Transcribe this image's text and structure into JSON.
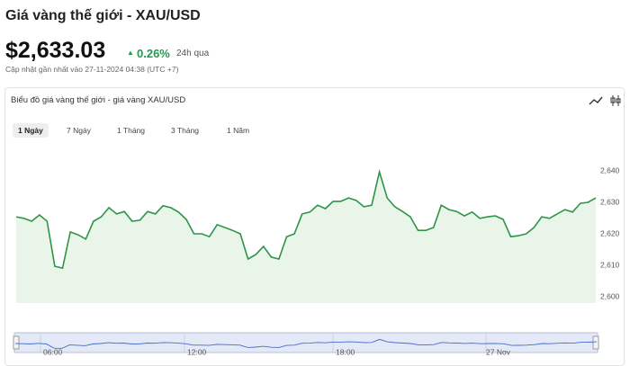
{
  "header": {
    "title": "Giá vàng thế giới - XAU/USD",
    "price": "$2,633.03",
    "change": "0.26%",
    "change_period": "24h qua",
    "updated": "Cập nhật gần nhất vào 27-11-2024 04:38 (UTC +7)"
  },
  "panel": {
    "title": "Biểu đồ giá vàng thế giới - giá vàng XAU/USD",
    "ranges": [
      "1 Ngày",
      "7 Ngày",
      "1 Tháng",
      "3 Tháng",
      "1 Năm"
    ],
    "active_range": 0
  },
  "chart_data": {
    "type": "area",
    "color": "#2e9447",
    "values": [
      2625.4,
      2624.9,
      2624,
      2626,
      2624,
      2609.7,
      2609.1,
      2620.6,
      2619.7,
      2618.3,
      2624,
      2625.4,
      2628.3,
      2626.3,
      2627.1,
      2624,
      2624.3,
      2627.1,
      2626.3,
      2628.9,
      2628.3,
      2626.9,
      2624.6,
      2620,
      2620,
      2619.1,
      2622.9,
      2622,
      2621.1,
      2620,
      2612,
      2613.4,
      2616,
      2612.6,
      2612,
      2619.1,
      2620,
      2626.3,
      2626.9,
      2629.1,
      2628,
      2630.3,
      2630.3,
      2631.4,
      2630.6,
      2628.6,
      2629.1,
      2639.7,
      2631.4,
      2628.6,
      2627.1,
      2625.4,
      2621.1,
      2621.1,
      2622,
      2629.1,
      2627.7,
      2627.1,
      2625.7,
      2626.9,
      2624.9,
      2625.4,
      2625.7,
      2624.6,
      2619.1,
      2619.4,
      2620,
      2622,
      2625.4,
      2624.9,
      2626.3,
      2627.7,
      2626.9,
      2629.7,
      2630,
      2631.4
    ],
    "ylim": [
      2598,
      2650
    ],
    "yticks": [
      {
        "value": 2600,
        "label": "2,600"
      },
      {
        "value": 2610,
        "label": "2,610"
      },
      {
        "value": 2620,
        "label": "2,620"
      },
      {
        "value": 2630,
        "label": "2,630"
      },
      {
        "value": 2640,
        "label": "2,640"
      }
    ],
    "navigator_labels": [
      "06:00",
      "12:00",
      "18:00",
      "27 Nov"
    ]
  }
}
